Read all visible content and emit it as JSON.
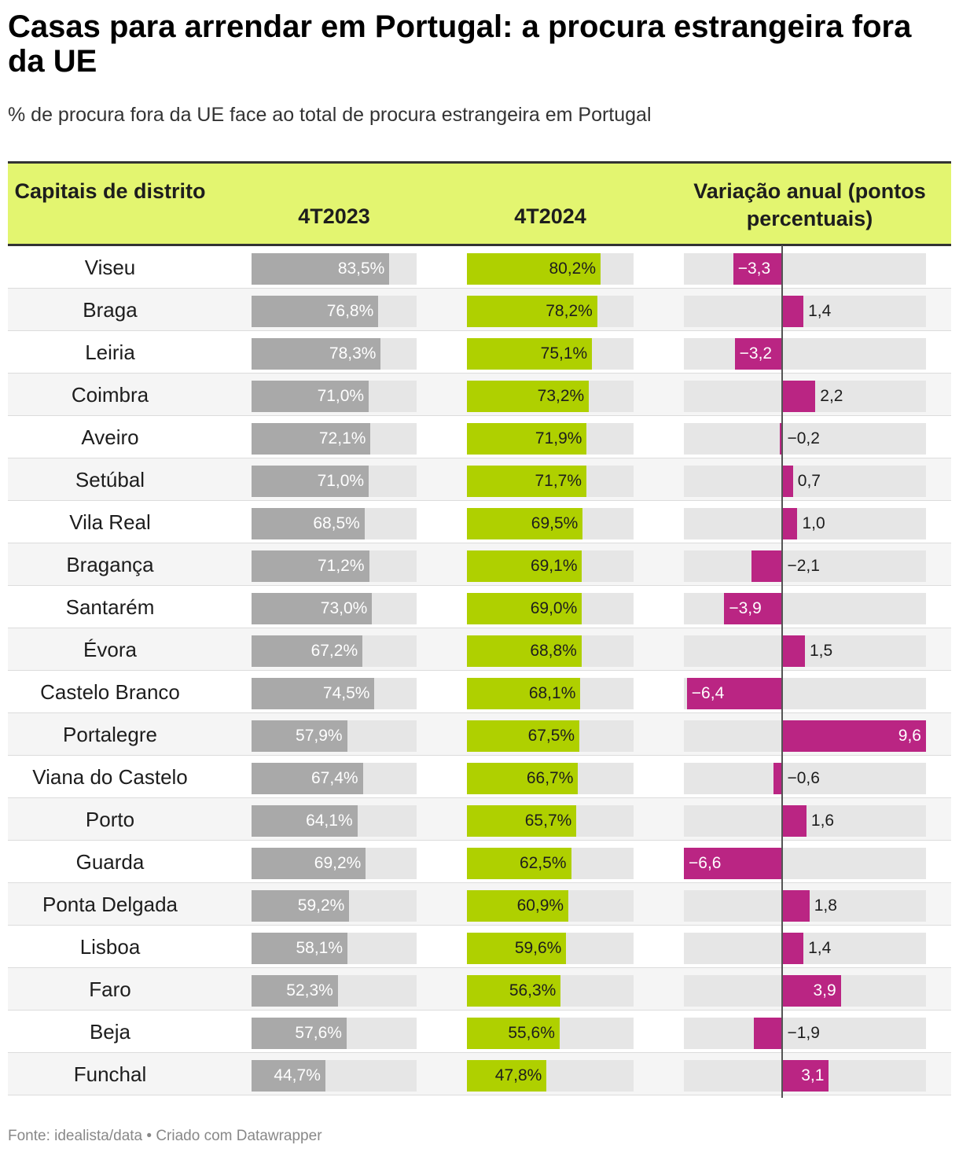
{
  "title": "Casas para arrendar em Portugal: a procura estrangeira fora da UE",
  "subtitle": "% de procura fora da UE face ao total de procura estrangeira em Portugal",
  "headers": {
    "city": "Capitais de distrito",
    "col2023": "4T2023",
    "col2024": "4T2024",
    "change": "Variação anual (pontos percentuais)"
  },
  "source": "Fonte: idealista/data • Criado com Datawrapper",
  "colors": {
    "header_bg": "#e3f570",
    "bar2023": "#a9a9a9",
    "bar2024": "#afd000",
    "change": "#ba2583",
    "track": "#e6e6e6"
  },
  "chart_data": {
    "type": "table",
    "columns": [
      "Capitais de distrito",
      "4T2023",
      "4T2024",
      "Variação anual (pontos percentuais)"
    ],
    "value_range": [
      0,
      100
    ],
    "change_range": [
      -6.6,
      9.6
    ],
    "rows": [
      {
        "city": "Viseu",
        "v2023": 83.5,
        "v2024": 80.2,
        "change": -3.3,
        "l2023": "83,5%",
        "l2024": "80,2%",
        "lchange": "−3,3"
      },
      {
        "city": "Braga",
        "v2023": 76.8,
        "v2024": 78.2,
        "change": 1.4,
        "l2023": "76,8%",
        "l2024": "78,2%",
        "lchange": "1,4"
      },
      {
        "city": "Leiria",
        "v2023": 78.3,
        "v2024": 75.1,
        "change": -3.2,
        "l2023": "78,3%",
        "l2024": "75,1%",
        "lchange": "−3,2"
      },
      {
        "city": "Coimbra",
        "v2023": 71.0,
        "v2024": 73.2,
        "change": 2.2,
        "l2023": "71,0%",
        "l2024": "73,2%",
        "lchange": "2,2"
      },
      {
        "city": "Aveiro",
        "v2023": 72.1,
        "v2024": 71.9,
        "change": -0.2,
        "l2023": "72,1%",
        "l2024": "71,9%",
        "lchange": "−0,2"
      },
      {
        "city": "Setúbal",
        "v2023": 71.0,
        "v2024": 71.7,
        "change": 0.7,
        "l2023": "71,0%",
        "l2024": "71,7%",
        "lchange": "0,7"
      },
      {
        "city": "Vila Real",
        "v2023": 68.5,
        "v2024": 69.5,
        "change": 1.0,
        "l2023": "68,5%",
        "l2024": "69,5%",
        "lchange": "1,0"
      },
      {
        "city": "Bragança",
        "v2023": 71.2,
        "v2024": 69.1,
        "change": -2.1,
        "l2023": "71,2%",
        "l2024": "69,1%",
        "lchange": "−2,1"
      },
      {
        "city": "Santarém",
        "v2023": 73.0,
        "v2024": 69.0,
        "change": -3.9,
        "l2023": "73,0%",
        "l2024": "69,0%",
        "lchange": "−3,9"
      },
      {
        "city": "Évora",
        "v2023": 67.2,
        "v2024": 68.8,
        "change": 1.5,
        "l2023": "67,2%",
        "l2024": "68,8%",
        "lchange": "1,5"
      },
      {
        "city": "Castelo Branco",
        "v2023": 74.5,
        "v2024": 68.1,
        "change": -6.4,
        "l2023": "74,5%",
        "l2024": "68,1%",
        "lchange": "−6,4"
      },
      {
        "city": "Portalegre",
        "v2023": 57.9,
        "v2024": 67.5,
        "change": 9.6,
        "l2023": "57,9%",
        "l2024": "67,5%",
        "lchange": "9,6"
      },
      {
        "city": "Viana do Castelo",
        "v2023": 67.4,
        "v2024": 66.7,
        "change": -0.6,
        "l2023": "67,4%",
        "l2024": "66,7%",
        "lchange": "−0,6"
      },
      {
        "city": "Porto",
        "v2023": 64.1,
        "v2024": 65.7,
        "change": 1.6,
        "l2023": "64,1%",
        "l2024": "65,7%",
        "lchange": "1,6"
      },
      {
        "city": "Guarda",
        "v2023": 69.2,
        "v2024": 62.5,
        "change": -6.6,
        "l2023": "69,2%",
        "l2024": "62,5%",
        "lchange": "−6,6"
      },
      {
        "city": "Ponta Delgada",
        "v2023": 59.2,
        "v2024": 60.9,
        "change": 1.8,
        "l2023": "59,2%",
        "l2024": "60,9%",
        "lchange": "1,8"
      },
      {
        "city": "Lisboa",
        "v2023": 58.1,
        "v2024": 59.6,
        "change": 1.4,
        "l2023": "58,1%",
        "l2024": "59,6%",
        "lchange": "1,4"
      },
      {
        "city": "Faro",
        "v2023": 52.3,
        "v2024": 56.3,
        "change": 3.9,
        "l2023": "52,3%",
        "l2024": "56,3%",
        "lchange": "3,9"
      },
      {
        "city": "Beja",
        "v2023": 57.6,
        "v2024": 55.6,
        "change": -1.9,
        "l2023": "57,6%",
        "l2024": "55,6%",
        "lchange": "−1,9"
      },
      {
        "city": "Funchal",
        "v2023": 44.7,
        "v2024": 47.8,
        "change": 3.1,
        "l2023": "44,7%",
        "l2024": "47,8%",
        "lchange": "3,1"
      }
    ]
  }
}
